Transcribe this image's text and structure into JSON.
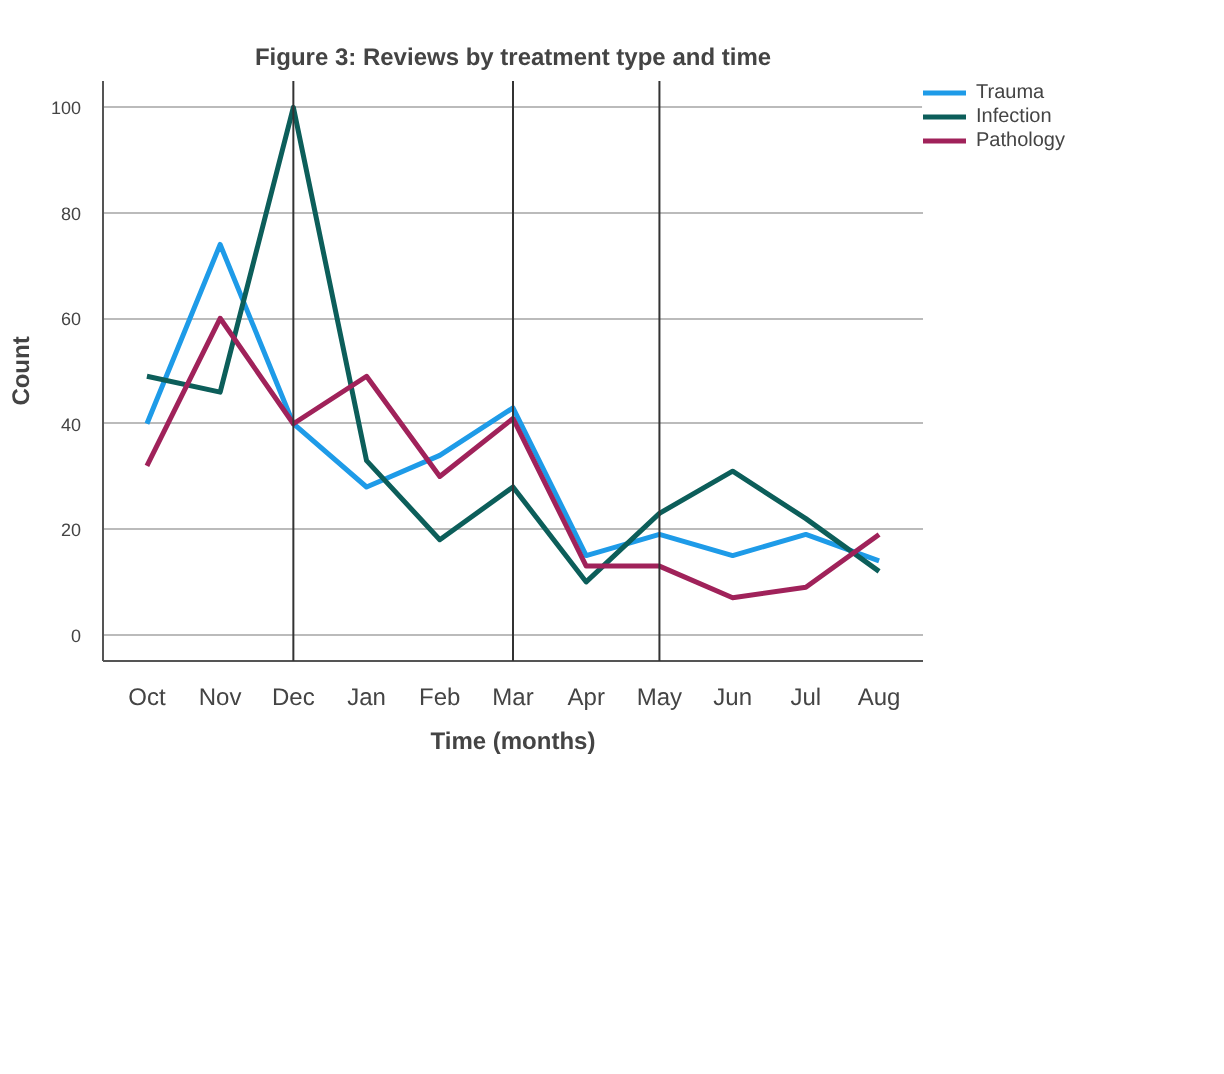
{
  "chart_data": {
    "type": "line",
    "title": "Figure 3: Reviews by treatment type and time",
    "xlabel": "Time (months)",
    "ylabel": "Count",
    "categories": [
      "Oct",
      "Nov",
      "Dec",
      "Jan",
      "Feb",
      "Mar",
      "Apr",
      "May",
      "Jun",
      "Jul",
      "Aug"
    ],
    "series": [
      {
        "name": "Trauma",
        "color": "#1e9be8",
        "values": [
          40,
          74,
          40,
          28,
          34,
          43,
          15,
          19,
          15,
          19,
          14
        ]
      },
      {
        "name": "Infection",
        "color": "#0c5e5a",
        "values": [
          49,
          46,
          100,
          33,
          18,
          28,
          10,
          23,
          31,
          22,
          12
        ]
      },
      {
        "name": "Pathology",
        "color": "#a0225a",
        "values": [
          32,
          60,
          40,
          49,
          30,
          41,
          13,
          13,
          7,
          9,
          19
        ]
      }
    ],
    "ylim": [
      -5,
      105
    ],
    "yticks": [
      0,
      20,
      40,
      60,
      80,
      100
    ],
    "grid": "y",
    "legend": "top right",
    "ref_lines": [
      {
        "axis": "x",
        "value": "Dec",
        "color": "#333333"
      },
      {
        "axis": "x",
        "value": "Mar",
        "color": "#333333"
      },
      {
        "axis": "x",
        "value": "May",
        "color": "#333333"
      }
    ]
  }
}
